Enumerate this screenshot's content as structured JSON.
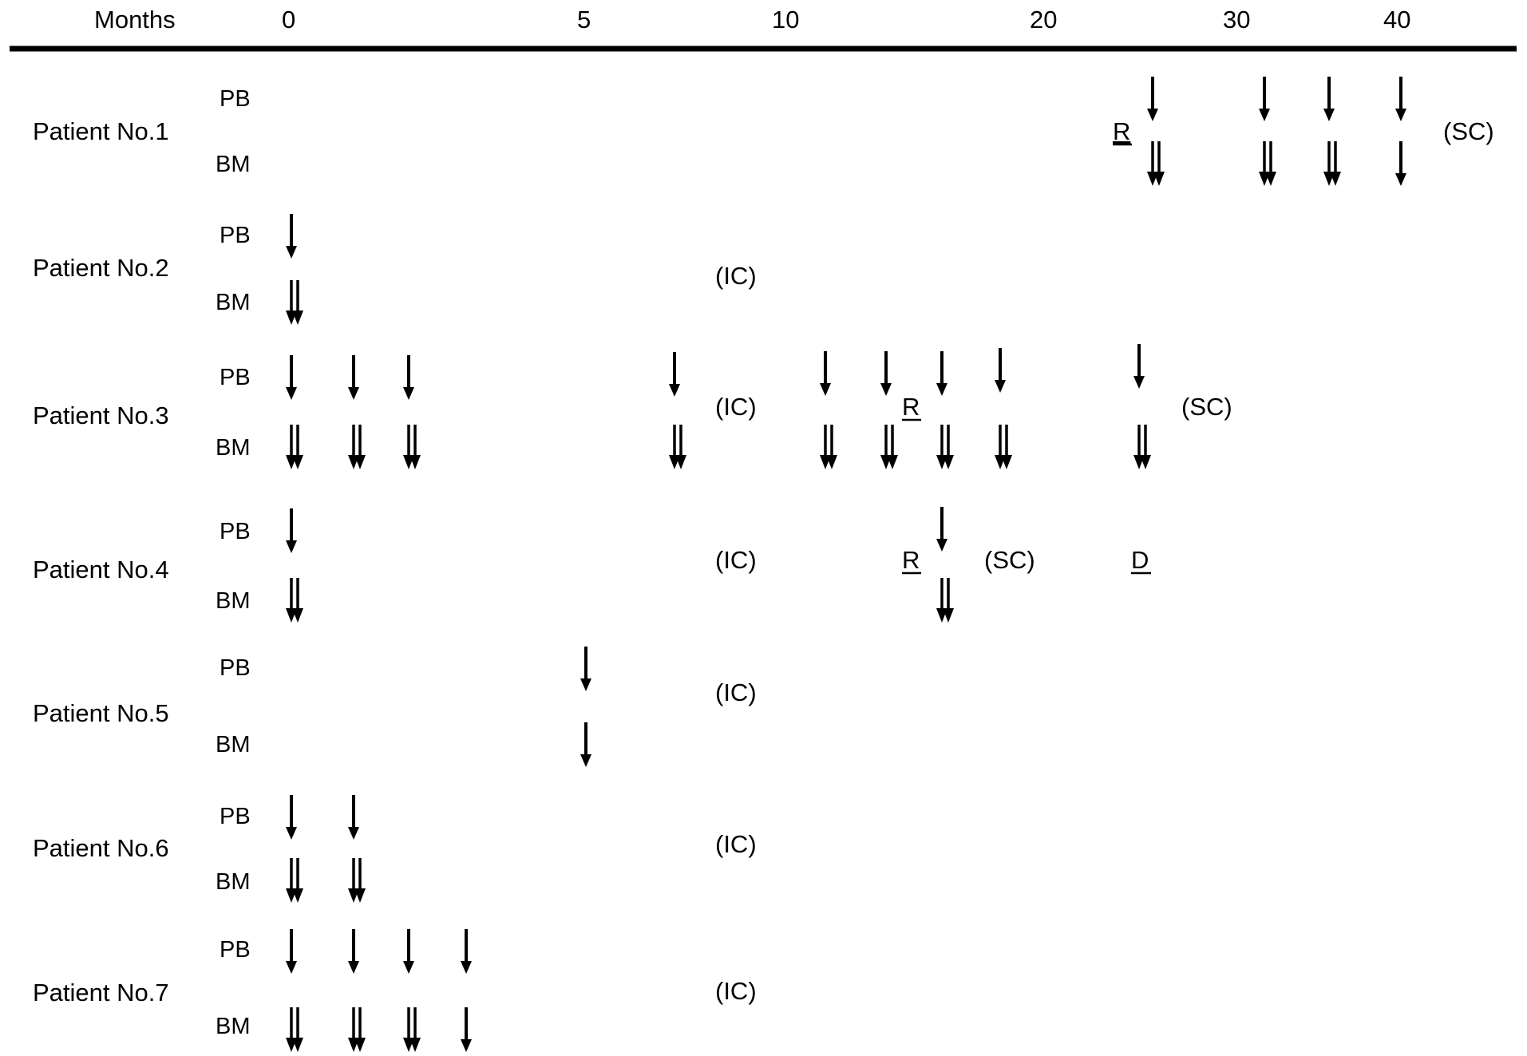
{
  "axis": {
    "label": "Months",
    "ticks": [
      "0",
      "5",
      "10",
      "20",
      "30",
      "40"
    ]
  },
  "sample_labels": {
    "pb": "PB",
    "bm": "BM"
  },
  "patients": [
    {
      "label": "Patient No.1",
      "pb_arrows": 4,
      "bm_arrows": 4,
      "markers": [
        "R",
        "(SC)"
      ]
    },
    {
      "label": "Patient No.2",
      "pb_arrows": 1,
      "bm_arrows": 1,
      "markers": [
        "(IC)"
      ]
    },
    {
      "label": "Patient No.3",
      "pb_arrows": 9,
      "bm_arrows": 9,
      "markers": [
        "(IC)",
        "R",
        "(SC)"
      ]
    },
    {
      "label": "Patient No.4",
      "pb_arrows": 2,
      "bm_arrows": 2,
      "markers": [
        "(IC)",
        "R",
        "(SC)",
        "D"
      ]
    },
    {
      "label": "Patient No.5",
      "pb_arrows": 1,
      "bm_arrows": 1,
      "markers": [
        "(IC)"
      ]
    },
    {
      "label": "Patient No.6",
      "pb_arrows": 2,
      "bm_arrows": 2,
      "markers": [
        "(IC)"
      ]
    },
    {
      "label": "Patient No.7",
      "pb_arrows": 4,
      "bm_arrows": 4,
      "markers": [
        "(IC)"
      ]
    }
  ],
  "legend": {
    "single_arrow": "single arrow",
    "double_arrow": "double arrow"
  }
}
